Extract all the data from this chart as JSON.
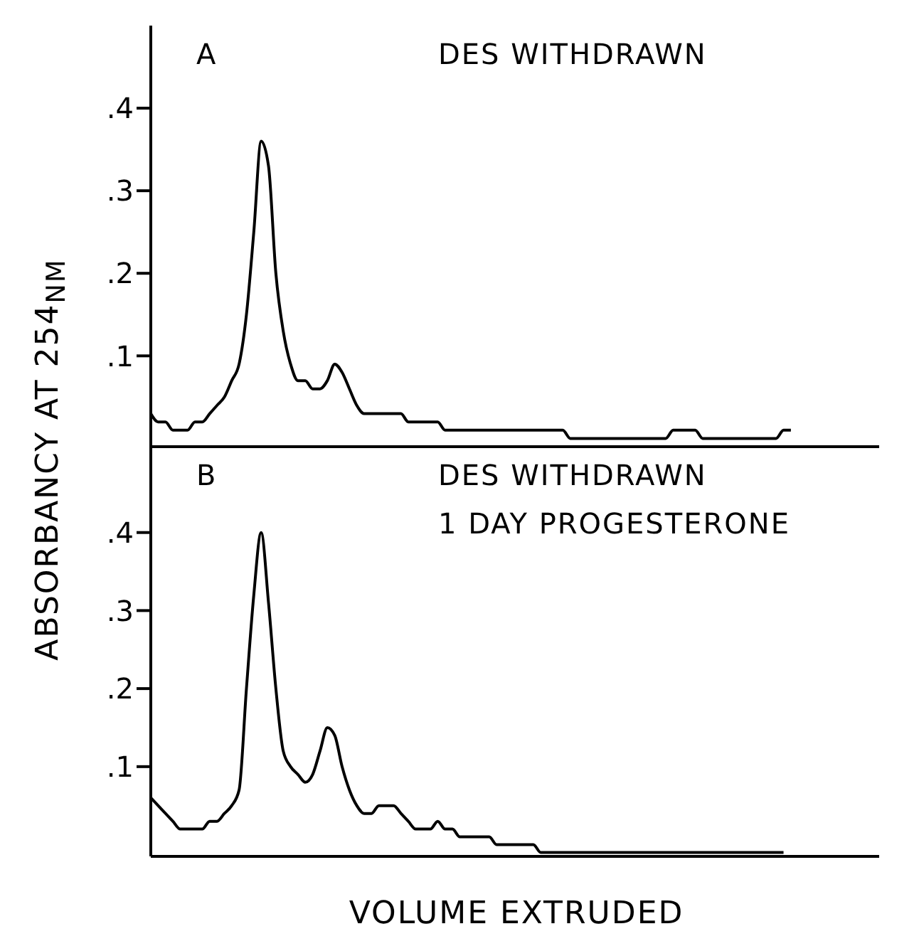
{
  "chart_data": [
    {
      "type": "line",
      "ylabel": "ABSORBANCY AT 254$_{NM}$",
      "annotations": [
        "A",
        "DES WITHDRAWN"
      ],
      "tick_labels": "y",
      "color": "#000000",
      "ylim": [
        -0.01,
        0.5
      ],
      "yticks": [
        {
          "value": 0.1,
          "label": ".1"
        },
        {
          "value": 0.2,
          "label": ".2"
        },
        {
          "value": 0.3,
          "label": ".3"
        },
        {
          "value": 0.4,
          "label": ".4"
        }
      ],
      "categories": [
        null,
        null,
        null,
        null,
        null,
        null,
        null,
        null,
        null,
        null,
        null,
        null,
        null,
        null,
        null,
        null,
        null,
        null,
        null,
        null,
        null,
        null,
        null,
        null,
        null,
        null,
        null,
        null,
        null,
        null,
        null,
        null,
        null,
        null,
        null,
        null,
        null,
        null,
        null,
        null,
        null,
        null,
        null,
        null,
        null,
        null,
        null,
        null,
        null,
        null,
        null,
        null,
        null,
        null,
        null,
        null,
        null,
        null,
        null,
        null,
        null,
        null,
        null,
        null,
        null,
        null,
        null,
        null,
        null,
        null,
        null,
        null,
        null,
        null,
        null,
        null,
        null,
        null,
        null,
        null,
        null,
        null,
        null,
        null,
        null,
        null,
        null,
        null,
        null,
        null,
        null,
        null,
        null,
        null,
        null,
        null,
        null,
        null,
        null,
        null
      ],
      "values": [
        0.03,
        0.02,
        0.02,
        0.01,
        0.01,
        0.01,
        0.02,
        0.02,
        0.03,
        0.04,
        0.05,
        0.07,
        0.09,
        0.15,
        0.25,
        0.36,
        0.33,
        0.2,
        0.13,
        0.09,
        0.07,
        0.07,
        0.06,
        0.06,
        0.07,
        0.09,
        0.08,
        0.06,
        0.04,
        0.03,
        0.03,
        0.03,
        0.03,
        0.03,
        0.03,
        0.02,
        0.02,
        0.02,
        0.02,
        0.02,
        0.01,
        0.01,
        0.01,
        0.01,
        0.01,
        0.01,
        0.01,
        0.01,
        0.01,
        0.01,
        0.01,
        0.01,
        0.01,
        0.01,
        0.01,
        0.01,
        0.01,
        0.0,
        0.0,
        0.0,
        0.0,
        0.0,
        0.0,
        0.0,
        0.0,
        0.0,
        0.0,
        0.0,
        0.0,
        0.0,
        0.0,
        0.01,
        0.01,
        0.01,
        0.01,
        0.0,
        0.0,
        0.0,
        0.0,
        0.0,
        0.0,
        0.0,
        0.0,
        0.0,
        0.0,
        0.0,
        0.01,
        0.01,
        null,
        null,
        null,
        null,
        null,
        null,
        null,
        null,
        null,
        null,
        null,
        null
      ]
    },
    {
      "type": "line",
      "xlabel": "VOLUME EXTRUDED",
      "annotations": [
        "B",
        "DES WITHDRAWN",
        "1 DAY PROGESTERONE"
      ],
      "tick_labels": "y",
      "color": "#000000",
      "ylim": [
        -0.015,
        0.51
      ],
      "yticks": [
        {
          "value": 0.1,
          "label": ".1"
        },
        {
          "value": 0.2,
          "label": ".2"
        },
        {
          "value": 0.3,
          "label": ".3"
        },
        {
          "value": 0.4,
          "label": ".4"
        }
      ],
      "categories": [
        null,
        null,
        null,
        null,
        null,
        null,
        null,
        null,
        null,
        null,
        null,
        null,
        null,
        null,
        null,
        null,
        null,
        null,
        null,
        null,
        null,
        null,
        null,
        null,
        null,
        null,
        null,
        null,
        null,
        null,
        null,
        null,
        null,
        null,
        null,
        null,
        null,
        null,
        null,
        null,
        null,
        null,
        null,
        null,
        null,
        null,
        null,
        null,
        null,
        null,
        null,
        null,
        null,
        null,
        null,
        null,
        null,
        null,
        null,
        null,
        null,
        null,
        null,
        null,
        null,
        null,
        null,
        null,
        null,
        null,
        null,
        null,
        null,
        null,
        null,
        null,
        null,
        null,
        null,
        null,
        null,
        null,
        null,
        null,
        null,
        null,
        null,
        null,
        null,
        null,
        null,
        null,
        null,
        null,
        null,
        null,
        null,
        null,
        null,
        null
      ],
      "values": [
        0.06,
        0.05,
        0.04,
        0.03,
        0.02,
        0.02,
        0.02,
        0.02,
        0.03,
        0.03,
        0.04,
        0.05,
        0.07,
        0.2,
        0.32,
        0.4,
        0.31,
        0.2,
        0.12,
        0.1,
        0.09,
        0.08,
        0.09,
        0.12,
        0.15,
        0.14,
        0.1,
        0.07,
        0.05,
        0.04,
        0.04,
        0.05,
        0.05,
        0.05,
        0.04,
        0.03,
        0.02,
        0.02,
        0.02,
        0.03,
        0.02,
        0.02,
        0.01,
        0.01,
        0.01,
        0.01,
        0.01,
        0.0,
        0.0,
        0.0,
        0.0,
        0.0,
        0.0,
        -0.01,
        -0.01,
        -0.01,
        -0.01,
        -0.01,
        -0.01,
        -0.01,
        -0.01,
        -0.01,
        -0.01,
        -0.01,
        -0.01,
        -0.01,
        -0.01,
        -0.01,
        -0.01,
        -0.01,
        -0.01,
        -0.01,
        -0.01,
        -0.01,
        -0.01,
        -0.01,
        -0.01,
        -0.01,
        -0.01,
        -0.01,
        -0.01,
        -0.01,
        -0.01,
        -0.01,
        -0.01,
        -0.01,
        -0.01,
        null,
        null,
        null,
        null,
        null,
        null,
        null,
        null,
        null,
        null,
        null,
        null,
        null
      ]
    }
  ]
}
